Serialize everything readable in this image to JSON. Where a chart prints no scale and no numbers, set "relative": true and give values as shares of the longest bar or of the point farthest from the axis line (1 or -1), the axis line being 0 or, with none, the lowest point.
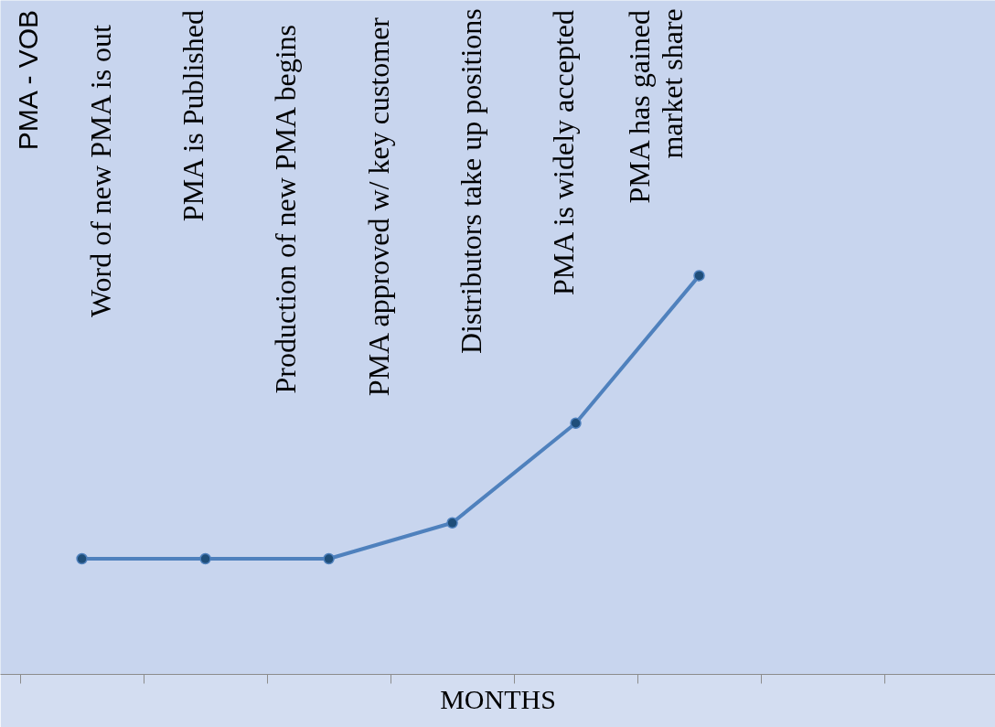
{
  "chart_data": {
    "type": "line",
    "ylabel": "PMA - VOB",
    "xlabel": "MONTHS",
    "relative": true,
    "categories": [
      null,
      null,
      null,
      null,
      null,
      null,
      null,
      null
    ],
    "series": [
      {
        "color": "#4f81bd",
        "values": [
          0.29,
          0.29,
          0.29,
          0.38,
          0.63,
          1,
          null,
          null
        ]
      }
    ],
    "marker": "circle",
    "annotations": [
      "Word of  new  PMA is out",
      "PMA is Published",
      "Production of  new  PMA begins",
      "PMA approved w/  key customer",
      "Distributors take up positions",
      "PMA is widely accepted",
      "PMA has gained\nmarket share"
    ]
  }
}
